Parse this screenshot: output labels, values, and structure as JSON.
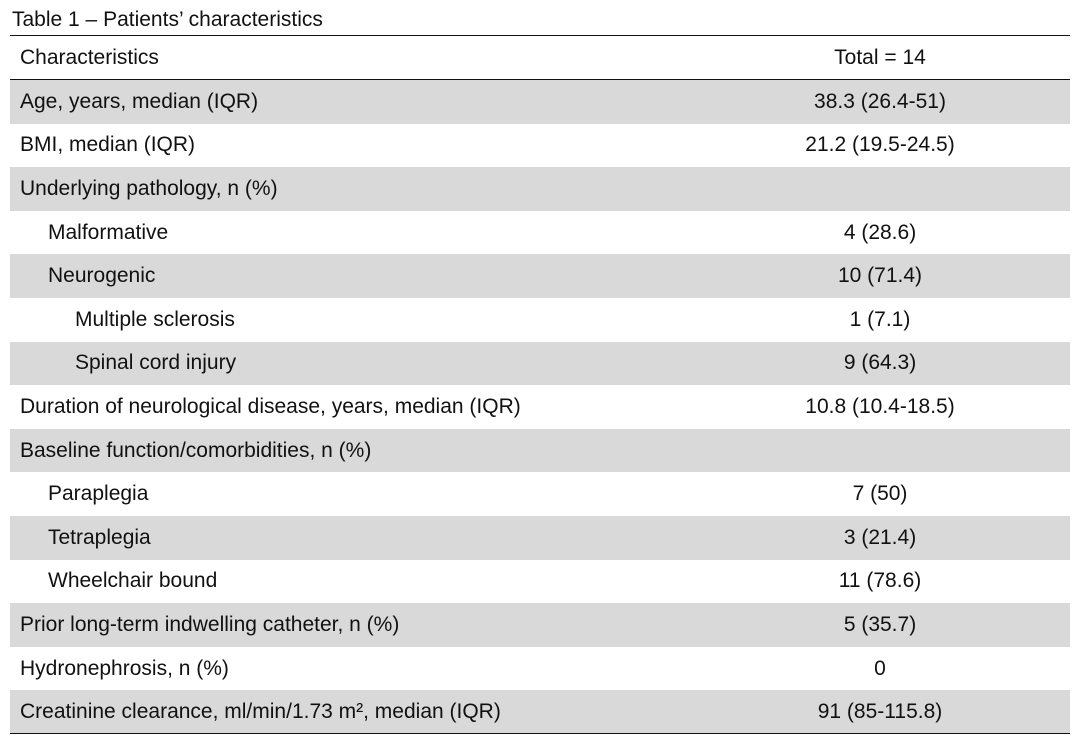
{
  "table": {
    "caption": "Table 1 – Patients’ characteristics",
    "header": {
      "label": "Characteristics",
      "value": "Total = 14"
    },
    "rows": [
      {
        "label": "Age, years, median (IQR)",
        "value": "38.3 (26.4-51)"
      },
      {
        "label": "BMI, median (IQR)",
        "value": "21.2 (19.5-24.5)"
      },
      {
        "label": "Underlying pathology, n (%)",
        "value": ""
      },
      {
        "label": "Malformative",
        "value": "4 (28.6)"
      },
      {
        "label": "Neurogenic",
        "value": "10 (71.4)"
      },
      {
        "label": "Multiple sclerosis",
        "value": "1 (7.1)"
      },
      {
        "label": "Spinal cord injury",
        "value": "9 (64.3)"
      },
      {
        "label": "Duration of neurological disease, years, median (IQR)",
        "value": "10.8 (10.4-18.5)"
      },
      {
        "label": "Baseline function/comorbidities, n (%)",
        "value": ""
      },
      {
        "label": "Paraplegia",
        "value": "7 (50)"
      },
      {
        "label": "Tetraplegia",
        "value": "3 (21.4)"
      },
      {
        "label": "Wheelchair bound",
        "value": "11 (78.6)"
      },
      {
        "label": "Prior long-term indwelling catheter, n (%)",
        "value": "5 (35.7)"
      },
      {
        "label": "Hydronephrosis, n (%)",
        "value": "0"
      },
      {
        "label": "Creatinine clearance, ml/min/1.73 m², median (IQR)",
        "value": "91 (85-115.8)"
      }
    ]
  }
}
